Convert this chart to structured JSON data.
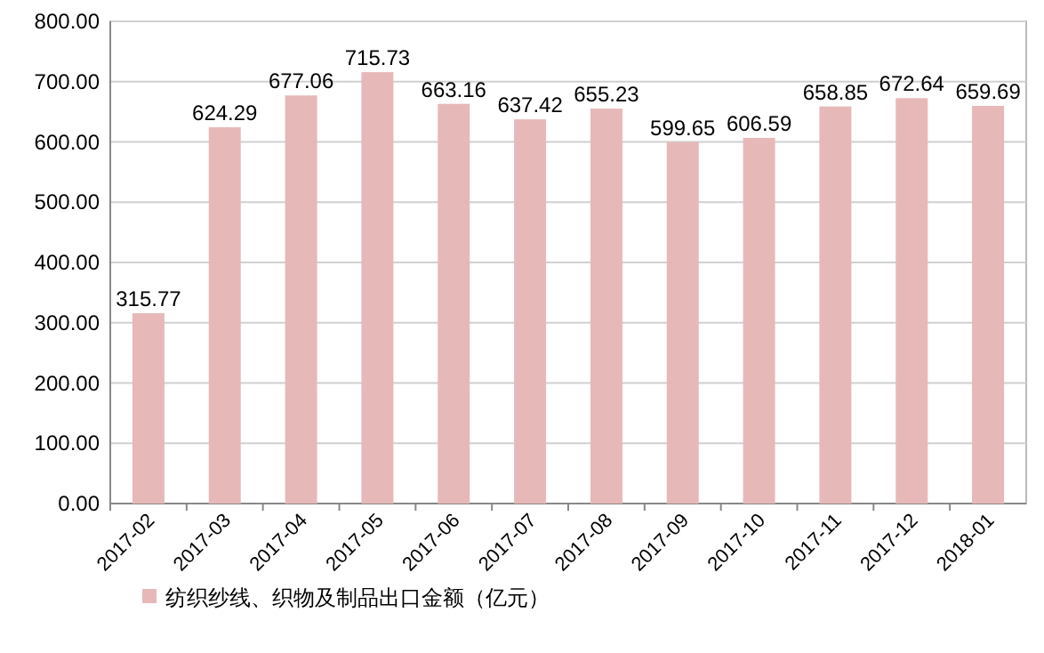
{
  "chart_data": {
    "type": "bar",
    "categories": [
      "2017-02",
      "2017-03",
      "2017-04",
      "2017-05",
      "2017-06",
      "2017-07",
      "2017-08",
      "2017-09",
      "2017-10",
      "2017-11",
      "2017-12",
      "2018-01"
    ],
    "series": [
      {
        "name": "纺织纱线、织物及制品出口金额（亿元）",
        "color": "#e6b9b8",
        "values": [
          315.77,
          624.29,
          677.06,
          715.73,
          663.16,
          637.42,
          655.23,
          599.65,
          606.59,
          658.85,
          672.64,
          659.69
        ]
      }
    ],
    "ylim": [
      0,
      800
    ],
    "yticks": [
      {
        "value": 0,
        "label": "0.00"
      },
      {
        "value": 100,
        "label": "100.00"
      },
      {
        "value": 200,
        "label": "200.00"
      },
      {
        "value": 300,
        "label": "300.00"
      },
      {
        "value": 400,
        "label": "400.00"
      },
      {
        "value": 500,
        "label": "500.00"
      },
      {
        "value": 600,
        "label": "600.00"
      },
      {
        "value": 700,
        "label": "700.00"
      },
      {
        "value": 800,
        "label": "800.00"
      }
    ],
    "grid": "y",
    "legend": "bottom",
    "data_labels": true
  }
}
